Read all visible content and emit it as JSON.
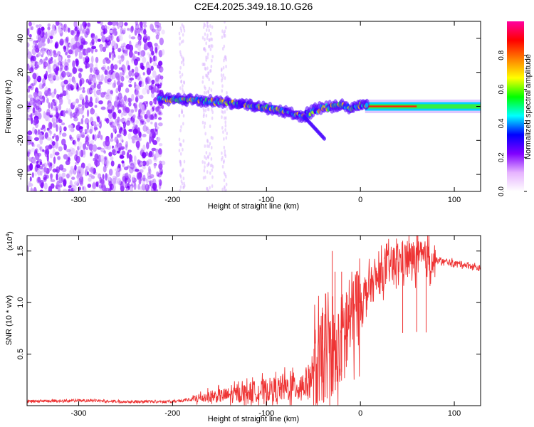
{
  "page": {
    "title": "C2E4.2025.349.18.10.G26"
  },
  "chart_data": [
    {
      "type": "heatmap",
      "name": "spectrogram",
      "xlabel": "Height of straight line (km)",
      "ylabel": "Frequency (Hz)",
      "xlim": [
        -355,
        128
      ],
      "ylim": [
        -50,
        50
      ],
      "xticks": [
        -300,
        -200,
        -100,
        0,
        100
      ],
      "yticks": [
        -40,
        -20,
        0,
        20,
        40
      ],
      "colorbar": {
        "label": "Normalized spectral amplitude",
        "ticks": [
          0.0,
          0.2,
          0.4,
          0.6,
          0.8
        ],
        "range": [
          0,
          1
        ],
        "colors": [
          "#ffffff",
          "#e6b3ff",
          "#8000ff",
          "#0000ff",
          "#00ffff",
          "#00ff00",
          "#ffff00",
          "#ff8000",
          "#ff0000",
          "#ff00a0"
        ]
      },
      "ridge": {
        "x": [
          -215,
          -200,
          -180,
          -160,
          -140,
          -120,
          -100,
          -80,
          -60,
          -50,
          -40,
          -30,
          -20,
          -10,
          0,
          10,
          50,
          100,
          128
        ],
        "y": [
          5,
          4,
          4,
          3,
          2,
          1,
          -1,
          -3,
          -6,
          -2,
          -1,
          0,
          1,
          -1,
          1,
          0,
          0,
          0,
          0
        ]
      },
      "noise_region_end_x": -215
    },
    {
      "type": "line",
      "name": "snr",
      "xlabel": "Height of straight line (km)",
      "ylabel": "SNR (10 * v/v)",
      "ylabel_multiplier": "(x10^4)",
      "ylabel_multiplier_base": "(x10",
      "ylabel_multiplier_exp": "4",
      "ylabel_multiplier_close": ")",
      "xlim": [
        -355,
        128
      ],
      "ylim": [
        0,
        1.65
      ],
      "xticks": [
        -300,
        -200,
        -100,
        0,
        100
      ],
      "yticks": [
        0.5,
        1.0,
        1.5
      ],
      "ytick_labels": [
        "0.5",
        "1.0",
        "1.5"
      ],
      "line_color": "#ee3333",
      "envelope": {
        "x": [
          -355,
          -300,
          -250,
          -200,
          -180,
          -160,
          -140,
          -120,
          -100,
          -80,
          -60,
          -50,
          -40,
          -30,
          -25,
          -20,
          -10,
          0,
          10,
          20,
          30,
          40,
          50,
          60,
          70,
          80,
          100,
          110,
          120,
          128
        ],
        "y": [
          0.04,
          0.05,
          0.04,
          0.04,
          0.06,
          0.09,
          0.1,
          0.13,
          0.15,
          0.17,
          0.2,
          0.3,
          0.45,
          0.55,
          0.4,
          0.65,
          0.85,
          1.0,
          1.15,
          1.25,
          1.35,
          1.4,
          1.42,
          1.43,
          1.42,
          1.41,
          1.38,
          1.37,
          1.35,
          1.33
        ]
      },
      "spikes": [
        {
          "x": -40,
          "y": 0.9
        },
        {
          "x": -30,
          "y": 1.5
        },
        {
          "x": -27,
          "y": 1.3
        },
        {
          "x": -20,
          "y": 1.3
        },
        {
          "x": -15,
          "y": 1.1
        },
        {
          "x": 45,
          "y": 1.6
        },
        {
          "x": 60,
          "y": 1.65
        },
        {
          "x": 70,
          "y": 1.55
        }
      ]
    }
  ]
}
